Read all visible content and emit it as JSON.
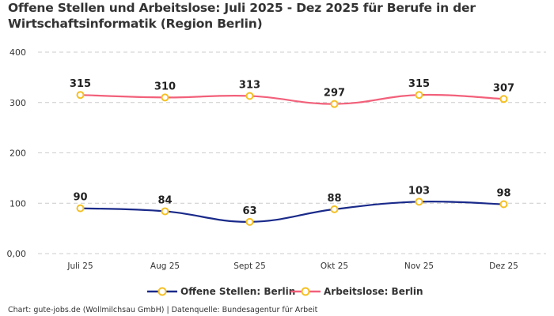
{
  "chart_data": {
    "type": "line",
    "title": "Offene Stellen und Arbeitslose: Juli 2025 - Dez 2025 für Berufe in der Wirtschaftsinformatik (Region Berlin)",
    "categories": [
      "Juli 25",
      "Aug 25",
      "Sept 25",
      "Okt 25",
      "Nov 25",
      "Dez 25"
    ],
    "ylim": [
      0,
      400
    ],
    "yticks": [
      0,
      100,
      200,
      300,
      400
    ],
    "ytick_labels": [
      "0,00",
      "100",
      "200",
      "300",
      "400"
    ],
    "grid": true,
    "legend_position": "bottom",
    "series": [
      {
        "name": "Offene Stellen: Berlin",
        "color": "#1a2a8a",
        "values": [
          90,
          84,
          63,
          88,
          103,
          98
        ]
      },
      {
        "name": "Arbeitslose: Berlin",
        "color": "#f2607a",
        "values": [
          315,
          310,
          313,
          297,
          315,
          307
        ]
      }
    ],
    "marker_color": "#f5c024"
  },
  "footer": "Chart: gute-jobs.de (Wollmilchsau GmbH) | Datenquelle: Bundesagentur für Arbeit"
}
